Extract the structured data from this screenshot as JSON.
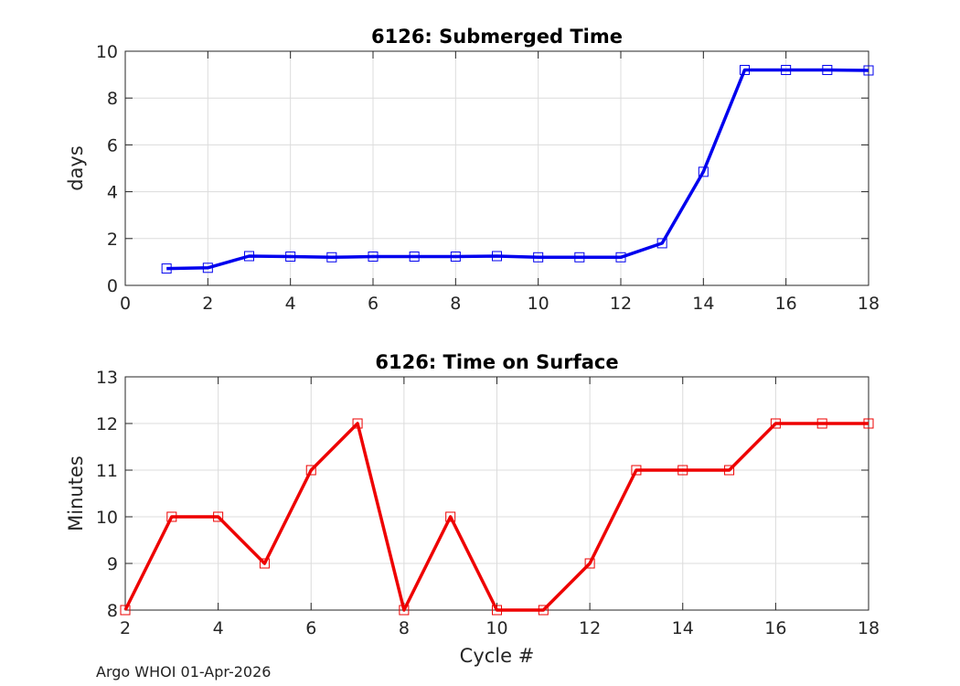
{
  "footer": "Argo WHOI 01-Apr-2026",
  "chart_data": [
    {
      "type": "line",
      "title": "6126: Submerged Time",
      "xlabel": "",
      "ylabel": "days",
      "xlim": [
        0,
        18
      ],
      "ylim": [
        0,
        10
      ],
      "xticks": [
        0,
        2,
        4,
        6,
        8,
        10,
        12,
        14,
        16,
        18
      ],
      "yticks": [
        0,
        2,
        4,
        6,
        8,
        10
      ],
      "grid": true,
      "color": "#0000ee",
      "marker": "square",
      "series": [
        {
          "name": "Submerged Time",
          "x": [
            1,
            2,
            3,
            4,
            5,
            6,
            7,
            8,
            9,
            10,
            11,
            12,
            13,
            14,
            15,
            16,
            17,
            18
          ],
          "y": [
            0.72,
            0.75,
            1.25,
            1.23,
            1.2,
            1.23,
            1.23,
            1.23,
            1.25,
            1.2,
            1.2,
            1.2,
            1.8,
            4.85,
            9.2,
            9.2,
            9.2,
            9.18
          ]
        }
      ]
    },
    {
      "type": "line",
      "title": "6126: Time on Surface",
      "xlabel": "Cycle #",
      "ylabel": "Minutes",
      "xlim": [
        2,
        18
      ],
      "ylim": [
        8,
        13
      ],
      "xticks": [
        2,
        4,
        6,
        8,
        10,
        12,
        14,
        16,
        18
      ],
      "yticks": [
        8,
        9,
        10,
        11,
        12,
        13
      ],
      "grid": true,
      "color": "#ee0000",
      "marker": "square",
      "series": [
        {
          "name": "Time on Surface",
          "x": [
            2,
            3,
            4,
            5,
            6,
            7,
            8,
            9,
            10,
            11,
            12,
            13,
            14,
            15,
            16,
            17,
            18
          ],
          "y": [
            8,
            10,
            10,
            9,
            11,
            12,
            8,
            10,
            8,
            8,
            9,
            11,
            11,
            11,
            12,
            12,
            12
          ]
        }
      ]
    }
  ]
}
